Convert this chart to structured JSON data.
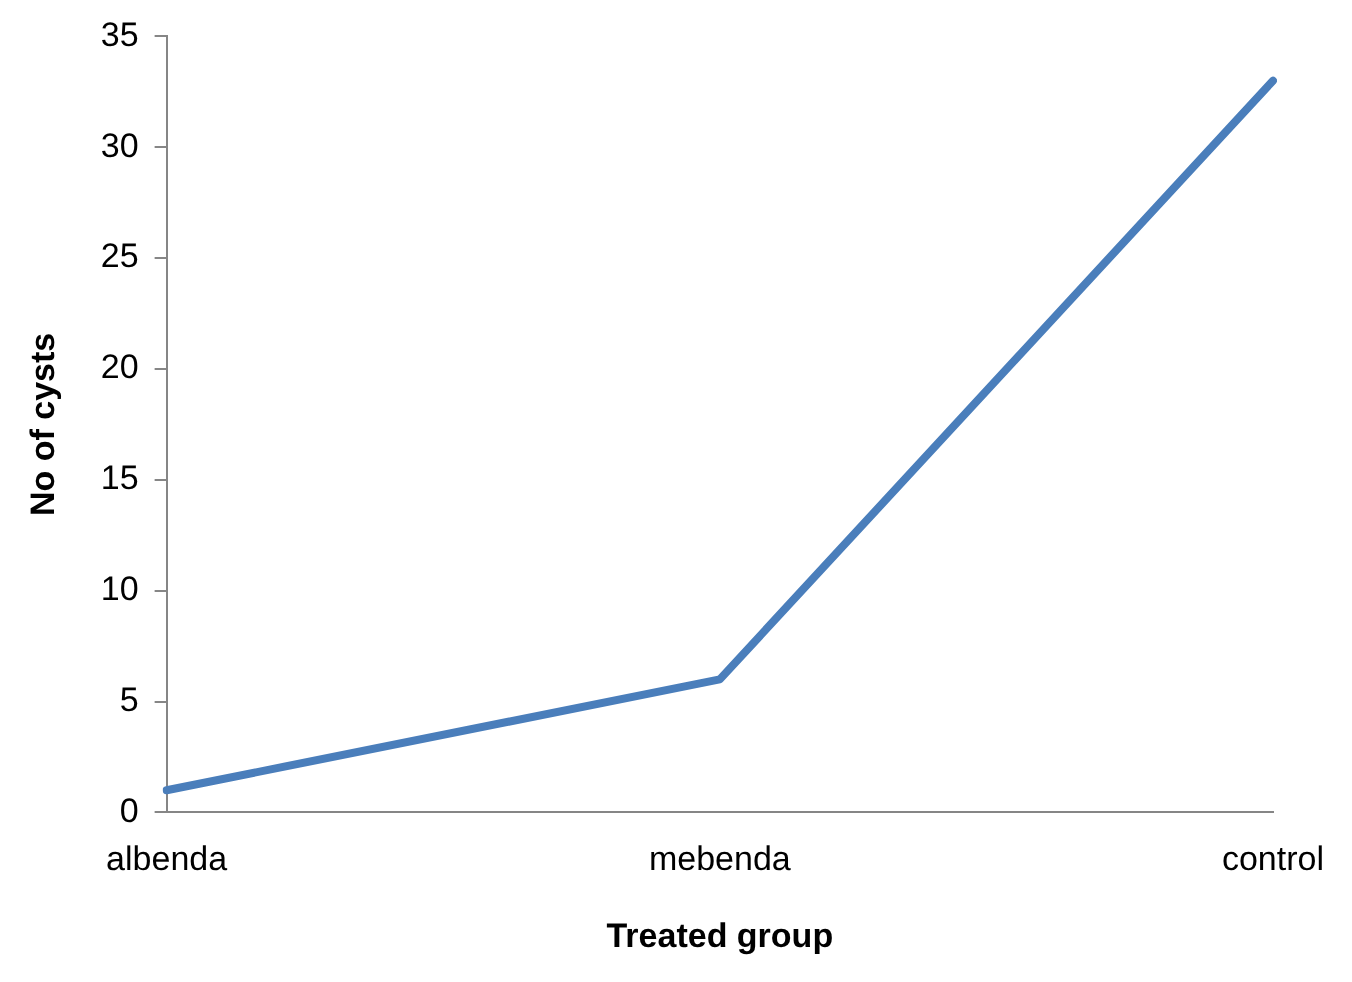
{
  "chart_data": {
    "type": "line",
    "xlabel": "Treated group",
    "ylabel": "No of cysts",
    "categories": [
      "albenda",
      "mebenda",
      "control"
    ],
    "series": [
      {
        "color": "#4a7ebb",
        "values": [
          1,
          6,
          33
        ]
      }
    ],
    "ylim": [
      0,
      35
    ],
    "yticks": [
      0,
      5,
      10,
      15,
      20,
      25,
      30,
      35
    ],
    "marker": "none",
    "line_style": "solid",
    "legend": false
  }
}
